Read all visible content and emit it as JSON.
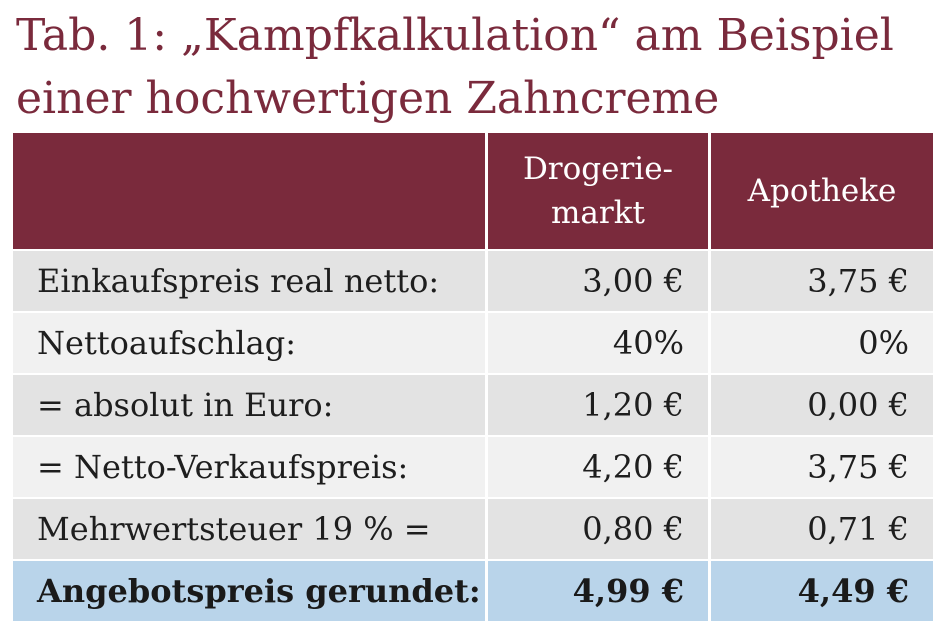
{
  "title": "Tab. 1: „Kampfkalkulation“ am Beispiel einer hochwertigen Zahncreme",
  "table": {
    "header": {
      "col1": "",
      "col2_line1": "Drogerie-",
      "col2_line2": "markt",
      "col3": "Apotheke"
    },
    "rows": [
      {
        "label": "Einkaufspreis real netto:",
        "drogeriemarkt": "3,00 €",
        "apotheke": "3,75 €"
      },
      {
        "label": "Nettoaufschlag:",
        "drogeriemarkt": "40%",
        "apotheke": "0%"
      },
      {
        "label": "= absolut in Euro:",
        "drogeriemarkt": "1,20 €",
        "apotheke": "0,00 €"
      },
      {
        "label": "= Netto-Verkaufspreis:",
        "drogeriemarkt": "4,20 €",
        "apotheke": "3,75 €"
      },
      {
        "label": "Mehrwertsteuer 19 % =",
        "drogeriemarkt": "0,80 €",
        "apotheke": "0,71 €"
      },
      {
        "label": "Angebotspreis gerundet:",
        "drogeriemarkt": "4,99 €",
        "apotheke": "4,49 €"
      }
    ]
  },
  "colors": {
    "title": "#7a2a3c",
    "header_bg": "#7a2a3c",
    "row_dark": "#e3e3e3",
    "row_light": "#f1f1f1",
    "total_row": "#b9d4ea"
  }
}
